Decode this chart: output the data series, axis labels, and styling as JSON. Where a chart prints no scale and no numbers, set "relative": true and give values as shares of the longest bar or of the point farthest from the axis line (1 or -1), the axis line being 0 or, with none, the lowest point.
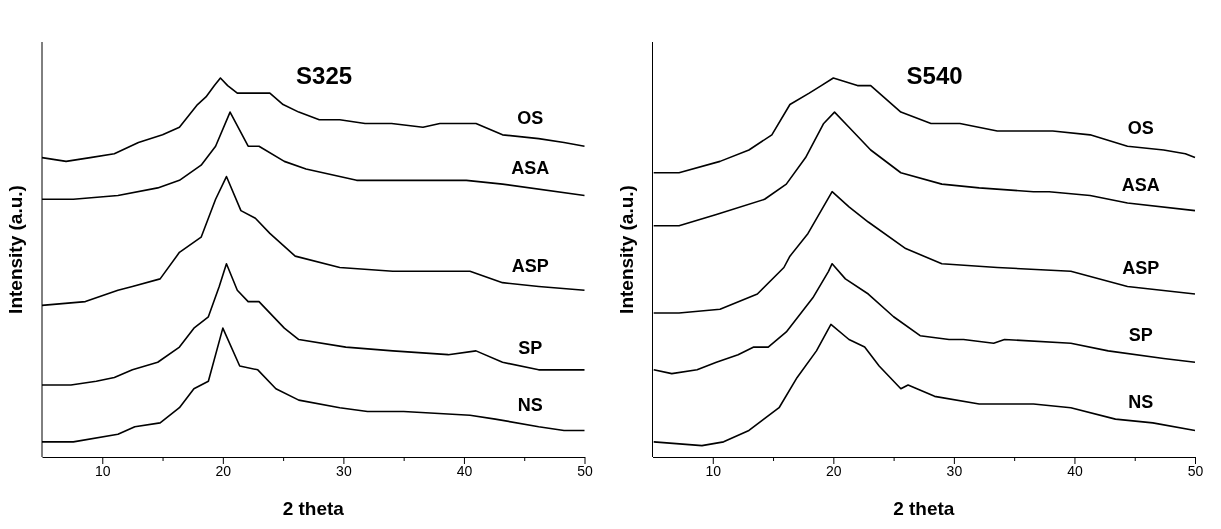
{
  "chart_data": [
    {
      "type": "line",
      "title": "S325",
      "xlabel": "2 theta",
      "ylabel": "Intensity (a.u.)",
      "relative": true,
      "xlim": [
        5,
        50
      ],
      "xticks": [
        10,
        {
          "value": 15,
          "label": null
        },
        20,
        {
          "value": 25,
          "label": null
        },
        30,
        {
          "value": 35,
          "label": null
        },
        40,
        {
          "value": 45,
          "label": null
        },
        50
      ],
      "legend": false,
      "line_style": "solid",
      "marker": "none",
      "series": [
        {
          "name": "OS",
          "color": "#000000",
          "x": [
            5,
            7,
            9,
            11,
            13,
            15,
            16.4,
            17.9,
            18.6,
            19.3,
            19.8,
            20.4,
            21.2,
            22.5,
            23.9,
            25,
            26.3,
            28,
            29.7,
            31.8,
            34,
            36.6,
            38,
            39.5,
            41,
            43.2,
            46.2,
            48.3,
            50
          ],
          "values": [
            0.79,
            0.78,
            0.79,
            0.8,
            0.83,
            0.85,
            0.87,
            0.93,
            0.95,
            0.98,
            1,
            0.98,
            0.96,
            0.96,
            0.96,
            0.93,
            0.91,
            0.89,
            0.89,
            0.88,
            0.88,
            0.87,
            0.88,
            0.88,
            0.88,
            0.85,
            0.84,
            0.83,
            0.82
          ]
        },
        {
          "name": "ASA",
          "color": "#000000",
          "x": [
            5,
            7.6,
            11.3,
            14.6,
            16.4,
            18.2,
            19.4,
            20.6,
            22.1,
            23,
            25.1,
            26.9,
            31.1,
            35.7,
            40.2,
            43.2,
            50
          ],
          "values": [
            0.68,
            0.68,
            0.69,
            0.71,
            0.73,
            0.77,
            0.82,
            0.91,
            0.82,
            0.82,
            0.78,
            0.76,
            0.73,
            0.73,
            0.73,
            0.72,
            0.69
          ]
        },
        {
          "name": "ASP",
          "color": "#000000",
          "x": [
            5,
            8.6,
            11.3,
            12.5,
            14.8,
            16.4,
            18.2,
            19.4,
            20.3,
            21.5,
            22.7,
            23.9,
            26,
            29.7,
            34.1,
            35,
            40.5,
            43.2,
            46.2,
            50
          ],
          "values": [
            0.4,
            0.41,
            0.44,
            0.45,
            0.47,
            0.54,
            0.58,
            0.68,
            0.74,
            0.65,
            0.63,
            0.59,
            0.53,
            0.5,
            0.49,
            0.49,
            0.49,
            0.46,
            0.45,
            0.44
          ]
        },
        {
          "name": "SP",
          "color": "#000000",
          "x": [
            5,
            7.4,
            9.5,
            11,
            12.5,
            14.6,
            16.4,
            17.6,
            18.8,
            19.7,
            20.3,
            21.2,
            22.1,
            23,
            25.1,
            26.3,
            30.2,
            34.1,
            38.7,
            41,
            43.2,
            46.2,
            50
          ],
          "values": [
            0.19,
            0.19,
            0.2,
            0.21,
            0.23,
            0.25,
            0.29,
            0.34,
            0.37,
            0.45,
            0.51,
            0.44,
            0.41,
            0.41,
            0.34,
            0.31,
            0.29,
            0.28,
            0.27,
            0.28,
            0.25,
            0.23,
            0.23
          ]
        },
        {
          "name": "NS",
          "color": "#000000",
          "x": [
            5,
            7.6,
            11.3,
            12.7,
            14.8,
            16.4,
            17.6,
            18.8,
            20,
            21.4,
            22.9,
            24.4,
            26.3,
            29.7,
            32,
            35,
            40.5,
            42.6,
            46.2,
            48.3,
            50
          ],
          "values": [
            0.04,
            0.04,
            0.06,
            0.08,
            0.09,
            0.13,
            0.18,
            0.2,
            0.34,
            0.24,
            0.23,
            0.18,
            0.15,
            0.13,
            0.12,
            0.12,
            0.11,
            0.1,
            0.08,
            0.07,
            0.07
          ]
        }
      ]
    },
    {
      "type": "line",
      "title": "S540",
      "xlabel": "2 theta",
      "ylabel": "Intensity (a.u.)",
      "relative": true,
      "xlim": [
        5,
        50
      ],
      "xticks": [
        10,
        {
          "value": 15,
          "label": null
        },
        20,
        {
          "value": 25,
          "label": null
        },
        30,
        {
          "value": 35,
          "label": null
        },
        40,
        {
          "value": 45,
          "label": null
        },
        50
      ],
      "legend": false,
      "line_style": "solid",
      "marker": "none",
      "series": [
        {
          "name": "OS",
          "color": "#000000",
          "x": [
            5.1,
            7.2,
            10.6,
            13,
            14.9,
            16.4,
            18,
            19,
            20,
            21,
            22,
            23.1,
            25.6,
            28.1,
            30.5,
            33.6,
            38.2,
            41.3,
            44.4,
            47.4,
            49.2,
            50
          ],
          "values": [
            0.75,
            0.75,
            0.78,
            0.81,
            0.85,
            0.93,
            0.96,
            0.98,
            1,
            0.99,
            0.98,
            0.98,
            0.91,
            0.88,
            0.88,
            0.86,
            0.86,
            0.85,
            0.82,
            0.81,
            0.8,
            0.79
          ]
        },
        {
          "name": "ASA",
          "color": "#000000",
          "x": [
            5.1,
            7.2,
            10.3,
            14.3,
            16.1,
            17.7,
            19.2,
            20.1,
            21.3,
            23.1,
            25.6,
            29,
            32.1,
            36.6,
            37.9,
            41.3,
            44.4,
            50
          ],
          "values": [
            0.61,
            0.61,
            0.64,
            0.68,
            0.72,
            0.79,
            0.88,
            0.91,
            0.87,
            0.81,
            0.75,
            0.72,
            0.71,
            0.7,
            0.7,
            0.69,
            0.67,
            0.65
          ]
        },
        {
          "name": "ASP",
          "color": "#000000",
          "x": [
            5.1,
            7.2,
            10.6,
            13.7,
            15.9,
            16.4,
            17.9,
            19.9,
            21.3,
            22.9,
            26,
            29,
            33.6,
            39.7,
            44.4,
            50
          ],
          "values": [
            0.38,
            0.38,
            0.39,
            0.43,
            0.5,
            0.53,
            0.59,
            0.7,
            0.66,
            0.62,
            0.55,
            0.51,
            0.5,
            0.49,
            0.45,
            0.43
          ]
        },
        {
          "name": "SP",
          "color": "#000000",
          "x": [
            5.1,
            6.6,
            8.7,
            10.3,
            12.1,
            13.4,
            14.6,
            16.1,
            18.3,
            19.6,
            19.9,
            21,
            22.9,
            25,
            27.2,
            29.6,
            30.8,
            33.3,
            34.2,
            39.7,
            42.8,
            47.4,
            50
          ],
          "values": [
            0.23,
            0.22,
            0.23,
            0.25,
            0.27,
            0.29,
            0.29,
            0.33,
            0.42,
            0.49,
            0.51,
            0.47,
            0.43,
            0.37,
            0.32,
            0.31,
            0.31,
            0.3,
            0.31,
            0.3,
            0.28,
            0.26,
            0.25
          ]
        },
        {
          "name": "NS",
          "color": "#000000",
          "x": [
            5.1,
            9.1,
            10.9,
            13,
            15.5,
            17,
            18.6,
            19.8,
            21.3,
            22.6,
            23.8,
            25.6,
            26.2,
            28.4,
            32.1,
            36.6,
            39.7,
            43.4,
            46.5,
            50
          ],
          "values": [
            0.04,
            0.03,
            0.04,
            0.07,
            0.13,
            0.21,
            0.28,
            0.35,
            0.31,
            0.29,
            0.24,
            0.18,
            0.19,
            0.16,
            0.14,
            0.14,
            0.13,
            0.1,
            0.09,
            0.07
          ]
        }
      ]
    }
  ]
}
